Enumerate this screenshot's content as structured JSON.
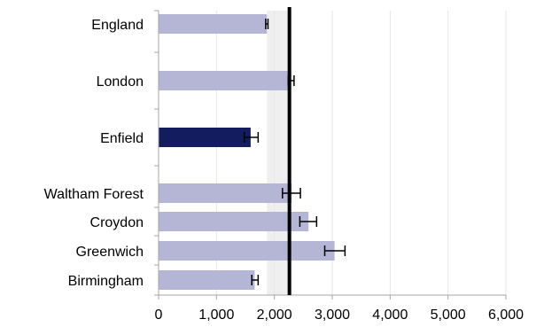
{
  "chart_data": {
    "type": "bar",
    "orientation": "horizontal",
    "title": "",
    "xlabel": "",
    "ylabel": "",
    "xlim": [
      0,
      6000
    ],
    "xticks": [
      0,
      1000,
      2000,
      3000,
      4000,
      5000,
      6000
    ],
    "xtick_labels": [
      "0",
      "1,000",
      "2,000",
      "3,000",
      "4,000",
      "5,000",
      "6,000"
    ],
    "grid": "vertical",
    "categories": [
      "England",
      "London",
      "Enfield",
      "Waltham Forest",
      "Croydon",
      "Greenwich",
      "Birmingham"
    ],
    "values": [
      1870,
      2290,
      1590,
      2300,
      2590,
      3040,
      1660
    ],
    "error_low": [
      1850,
      2240,
      1480,
      2140,
      2440,
      2870,
      1610
    ],
    "error_high": [
      1890,
      2340,
      1720,
      2450,
      2730,
      3220,
      1720
    ],
    "highlight_category": "Enfield",
    "reference_line": 2260,
    "reference_band": [
      1870,
      2300
    ],
    "colors": {
      "bar": "#b5b5d6",
      "highlight": "#131c5e",
      "reference_line": "#000000",
      "reference_band": "#efefef",
      "grid": "#e6e6e6",
      "axis": "#a6a6a6",
      "error_bar": "#000000"
    }
  }
}
